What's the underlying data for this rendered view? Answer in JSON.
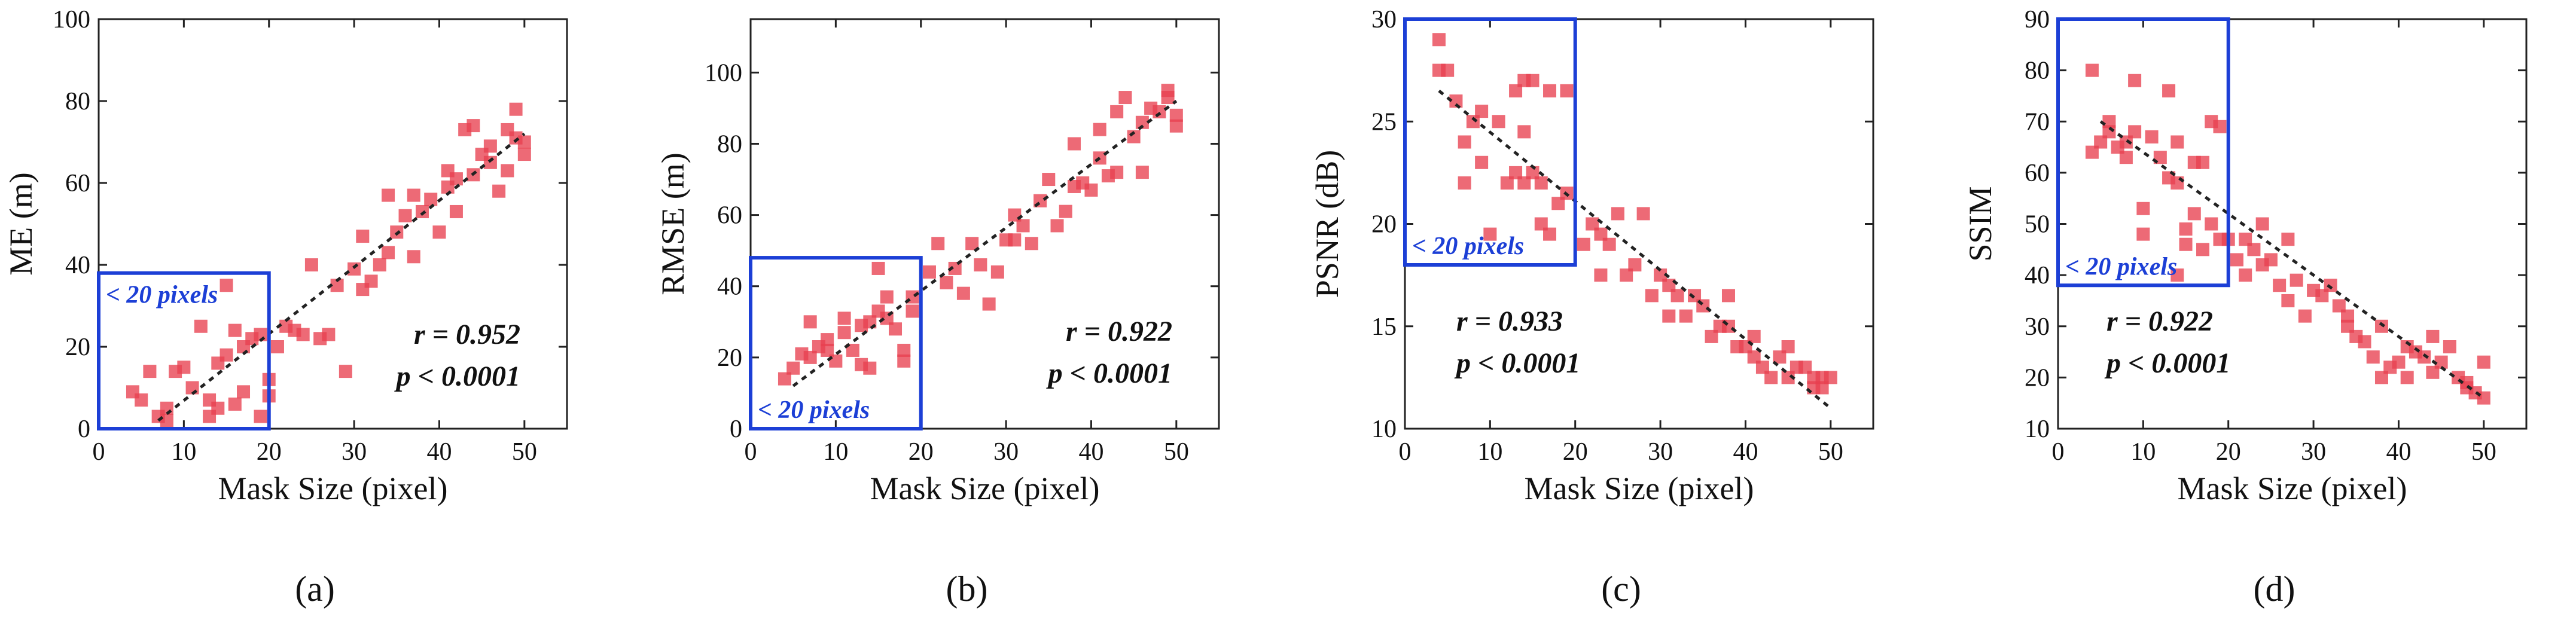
{
  "figure": {
    "xlabel": "Mask Size (pixel)",
    "inset_label": "< 20 pixels",
    "colors": {
      "point": "#e8404f",
      "box": "#1c3fd6",
      "inset_text": "#1c3fd6",
      "trend": "#222222",
      "axis": "#222222"
    }
  },
  "chart_data": [
    {
      "type": "scatter",
      "panel_label": "(a)",
      "ylabel": "ME (m)",
      "xlabel": "Mask Size (pixel)",
      "xlim": [
        0,
        55
      ],
      "ylim": [
        0,
        100
      ],
      "xticks": [
        0,
        10,
        20,
        30,
        40,
        50
      ],
      "yticks": [
        0,
        20,
        40,
        60,
        80,
        100
      ],
      "r_text": "r = 0.952",
      "p_text": "p < 0.0001",
      "inset_label": "< 20 pixels",
      "inset_box": {
        "x": [
          0,
          20
        ],
        "y": [
          0,
          38
        ]
      },
      "trend": {
        "x": [
          7,
          50
        ],
        "y": [
          2,
          72
        ]
      },
      "points": [
        [
          4,
          9
        ],
        [
          5,
          7
        ],
        [
          6,
          14
        ],
        [
          7,
          3
        ],
        [
          8,
          5
        ],
        [
          8,
          2
        ],
        [
          9,
          14
        ],
        [
          10,
          15
        ],
        [
          11,
          10
        ],
        [
          12,
          25
        ],
        [
          13,
          7
        ],
        [
          13,
          3
        ],
        [
          14,
          5
        ],
        [
          14,
          16
        ],
        [
          15,
          18
        ],
        [
          15,
          35
        ],
        [
          16,
          24
        ],
        [
          16,
          6
        ],
        [
          17,
          20
        ],
        [
          17,
          9
        ],
        [
          18,
          22
        ],
        [
          19,
          23
        ],
        [
          19,
          3
        ],
        [
          20,
          8
        ],
        [
          20,
          12
        ],
        [
          21,
          20
        ],
        [
          22,
          25
        ],
        [
          23,
          24
        ],
        [
          24,
          23
        ],
        [
          25,
          40
        ],
        [
          26,
          22
        ],
        [
          27,
          23
        ],
        [
          28,
          35
        ],
        [
          29,
          14
        ],
        [
          30,
          39
        ],
        [
          31,
          34
        ],
        [
          31,
          47
        ],
        [
          32,
          36
        ],
        [
          33,
          40
        ],
        [
          34,
          43
        ],
        [
          34,
          57
        ],
        [
          35,
          48
        ],
        [
          36,
          52
        ],
        [
          37,
          42
        ],
        [
          37,
          57
        ],
        [
          38,
          53
        ],
        [
          39,
          56
        ],
        [
          40,
          48
        ],
        [
          41,
          59
        ],
        [
          41,
          63
        ],
        [
          42,
          53
        ],
        [
          42,
          61
        ],
        [
          43,
          73
        ],
        [
          44,
          62
        ],
        [
          44,
          74
        ],
        [
          45,
          67
        ],
        [
          46,
          69
        ],
        [
          46,
          65
        ],
        [
          47,
          58
        ],
        [
          48,
          63
        ],
        [
          48,
          73
        ],
        [
          49,
          78
        ],
        [
          49,
          71
        ],
        [
          50,
          67
        ],
        [
          50,
          70
        ]
      ]
    },
    {
      "type": "scatter",
      "panel_label": "(b)",
      "ylabel": "RMSE (m)",
      "xlabel": "Mask Size (pixel)",
      "xlim": [
        0,
        55
      ],
      "ylim": [
        0,
        115
      ],
      "xticks": [
        0,
        10,
        20,
        30,
        40,
        50
      ],
      "yticks": [
        0,
        20,
        40,
        60,
        80,
        100
      ],
      "r_text": "r = 0.922",
      "p_text": "p < 0.0001",
      "inset_label": "< 20 pixels",
      "inset_box": {
        "x": [
          0,
          20
        ],
        "y": [
          0,
          48
        ]
      },
      "trend": {
        "x": [
          5,
          50
        ],
        "y": [
          12,
          92
        ]
      },
      "points": [
        [
          4,
          14
        ],
        [
          5,
          17
        ],
        [
          6,
          21
        ],
        [
          7,
          20
        ],
        [
          7,
          30
        ],
        [
          8,
          23
        ],
        [
          9,
          25
        ],
        [
          9,
          22
        ],
        [
          10,
          19
        ],
        [
          11,
          31
        ],
        [
          11,
          27
        ],
        [
          12,
          22
        ],
        [
          13,
          29
        ],
        [
          13,
          18
        ],
        [
          14,
          30
        ],
        [
          14,
          17
        ],
        [
          15,
          45
        ],
        [
          15,
          33
        ],
        [
          16,
          31
        ],
        [
          16,
          37
        ],
        [
          17,
          28
        ],
        [
          18,
          19
        ],
        [
          18,
          22
        ],
        [
          19,
          33
        ],
        [
          19,
          37
        ],
        [
          21,
          44
        ],
        [
          22,
          52
        ],
        [
          23,
          41
        ],
        [
          24,
          45
        ],
        [
          25,
          38
        ],
        [
          26,
          52
        ],
        [
          27,
          46
        ],
        [
          28,
          35
        ],
        [
          29,
          44
        ],
        [
          30,
          53
        ],
        [
          31,
          60
        ],
        [
          31,
          53
        ],
        [
          32,
          57
        ],
        [
          33,
          52
        ],
        [
          34,
          64
        ],
        [
          35,
          70
        ],
        [
          36,
          57
        ],
        [
          37,
          61
        ],
        [
          38,
          68
        ],
        [
          38,
          80
        ],
        [
          39,
          69
        ],
        [
          40,
          67
        ],
        [
          41,
          76
        ],
        [
          41,
          84
        ],
        [
          42,
          71
        ],
        [
          43,
          72
        ],
        [
          43,
          89
        ],
        [
          44,
          93
        ],
        [
          45,
          82
        ],
        [
          46,
          86
        ],
        [
          46,
          72
        ],
        [
          47,
          90
        ],
        [
          48,
          89
        ],
        [
          49,
          93
        ],
        [
          49,
          95
        ],
        [
          50,
          88
        ],
        [
          50,
          85
        ]
      ]
    },
    {
      "type": "scatter",
      "panel_label": "(c)",
      "ylabel": "PSNR (dB)",
      "xlabel": "Mask Size (pixel)",
      "xlim": [
        0,
        55
      ],
      "ylim": [
        10,
        30
      ],
      "xticks": [
        0,
        10,
        20,
        30,
        40,
        50
      ],
      "yticks": [
        10,
        15,
        20,
        25,
        30
      ],
      "r_text": "r = 0.933",
      "p_text": "p < 0.0001",
      "inset_label": "< 20 pixels",
      "inset_box": {
        "x": [
          0,
          20
        ],
        "y": [
          18,
          30
        ]
      },
      "trend": {
        "x": [
          4,
          50
        ],
        "y": [
          26.5,
          11
        ]
      },
      "points": [
        [
          4,
          27.5
        ],
        [
          4,
          29
        ],
        [
          5,
          27.5
        ],
        [
          6,
          26
        ],
        [
          7,
          24
        ],
        [
          7,
          22
        ],
        [
          8,
          25
        ],
        [
          9,
          25.5
        ],
        [
          9,
          23
        ],
        [
          10,
          19.5
        ],
        [
          11,
          25
        ],
        [
          12,
          22
        ],
        [
          13,
          26.5
        ],
        [
          13,
          22.5
        ],
        [
          14,
          27
        ],
        [
          14,
          24.5
        ],
        [
          14,
          22
        ],
        [
          15,
          22.5
        ],
        [
          15,
          27
        ],
        [
          16,
          20
        ],
        [
          16,
          22
        ],
        [
          17,
          19.5
        ],
        [
          17,
          26.5
        ],
        [
          18,
          21
        ],
        [
          19,
          21.5
        ],
        [
          19,
          26.5
        ],
        [
          21,
          19
        ],
        [
          22,
          20
        ],
        [
          23,
          17.5
        ],
        [
          23,
          19.5
        ],
        [
          24,
          19
        ],
        [
          25,
          20.5
        ],
        [
          26,
          17.5
        ],
        [
          27,
          18
        ],
        [
          28,
          20.5
        ],
        [
          29,
          16.5
        ],
        [
          30,
          17.5
        ],
        [
          31,
          17
        ],
        [
          31,
          15.5
        ],
        [
          32,
          16.5
        ],
        [
          33,
          15.5
        ],
        [
          34,
          16.5
        ],
        [
          35,
          16
        ],
        [
          36,
          14.5
        ],
        [
          37,
          15
        ],
        [
          38,
          15
        ],
        [
          38,
          16.5
        ],
        [
          39,
          14
        ],
        [
          40,
          14
        ],
        [
          41,
          14.5
        ],
        [
          41,
          13.5
        ],
        [
          42,
          13
        ],
        [
          43,
          12.5
        ],
        [
          44,
          13.5
        ],
        [
          45,
          14
        ],
        [
          45,
          12.5
        ],
        [
          46,
          13
        ],
        [
          47,
          13
        ],
        [
          48,
          12
        ],
        [
          48,
          12.5
        ],
        [
          49,
          12
        ],
        [
          49,
          12.5
        ],
        [
          50,
          12.5
        ]
      ]
    },
    {
      "type": "scatter",
      "panel_label": "(d)",
      "ylabel": "SSIM",
      "xlabel": "Mask Size (pixel)",
      "xlim": [
        0,
        55
      ],
      "ylim": [
        10,
        90
      ],
      "xticks": [
        0,
        10,
        20,
        30,
        40,
        50
      ],
      "yticks": [
        10,
        20,
        30,
        40,
        50,
        60,
        70,
        80,
        90
      ],
      "r_text": "r = 0.922",
      "p_text": "p < 0.0001",
      "inset_label": "< 20 pixels",
      "inset_box": {
        "x": [
          0,
          20
        ],
        "y": [
          38,
          90
        ]
      },
      "trend": {
        "x": [
          5,
          50
        ],
        "y": [
          70,
          16
        ]
      },
      "points": [
        [
          4,
          64
        ],
        [
          4,
          80
        ],
        [
          5,
          66
        ],
        [
          6,
          70
        ],
        [
          6,
          68
        ],
        [
          7,
          65
        ],
        [
          8,
          66
        ],
        [
          8,
          63
        ],
        [
          9,
          78
        ],
        [
          9,
          68
        ],
        [
          10,
          53
        ],
        [
          10,
          48
        ],
        [
          11,
          67
        ],
        [
          12,
          63
        ],
        [
          13,
          59
        ],
        [
          13,
          76
        ],
        [
          14,
          58
        ],
        [
          14,
          66
        ],
        [
          14,
          40
        ],
        [
          15,
          49
        ],
        [
          15,
          46
        ],
        [
          16,
          62
        ],
        [
          16,
          52
        ],
        [
          17,
          62
        ],
        [
          17,
          45
        ],
        [
          18,
          70
        ],
        [
          18,
          50
        ],
        [
          19,
          47
        ],
        [
          19,
          69
        ],
        [
          20,
          47
        ],
        [
          21,
          43
        ],
        [
          22,
          40
        ],
        [
          22,
          47
        ],
        [
          23,
          45
        ],
        [
          24,
          42
        ],
        [
          24,
          50
        ],
        [
          25,
          43
        ],
        [
          26,
          38
        ],
        [
          27,
          35
        ],
        [
          27,
          47
        ],
        [
          28,
          39
        ],
        [
          29,
          32
        ],
        [
          30,
          37
        ],
        [
          31,
          36
        ],
        [
          32,
          38
        ],
        [
          33,
          34
        ],
        [
          34,
          32
        ],
        [
          34,
          30
        ],
        [
          35,
          28
        ],
        [
          36,
          27
        ],
        [
          37,
          24
        ],
        [
          38,
          30
        ],
        [
          38,
          20
        ],
        [
          39,
          22
        ],
        [
          40,
          23
        ],
        [
          41,
          26
        ],
        [
          41,
          20
        ],
        [
          42,
          25
        ],
        [
          43,
          24
        ],
        [
          44,
          21
        ],
        [
          44,
          28
        ],
        [
          45,
          23
        ],
        [
          46,
          26
        ],
        [
          47,
          20
        ],
        [
          48,
          19
        ],
        [
          48,
          18
        ],
        [
          49,
          17
        ],
        [
          50,
          16
        ],
        [
          50,
          23
        ]
      ]
    }
  ]
}
